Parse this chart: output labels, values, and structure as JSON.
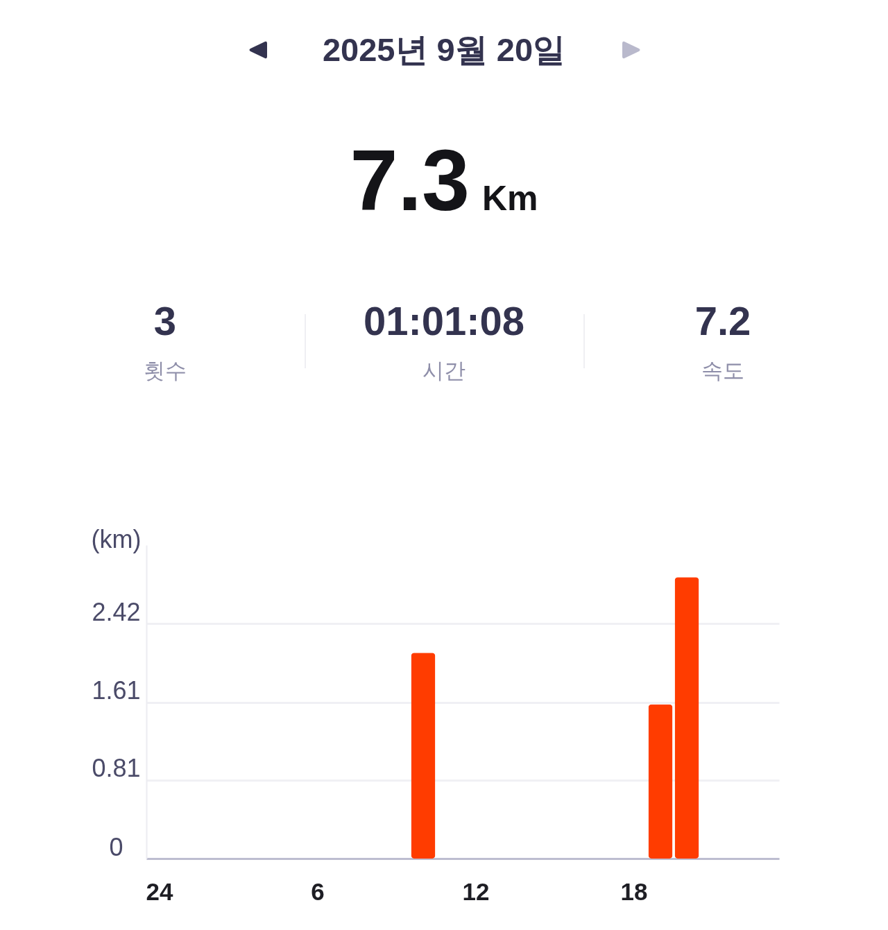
{
  "chart_data": {
    "type": "bar",
    "title": "2025년 9월 20일",
    "ylabel": "(km)",
    "categories": [
      "24",
      null,
      null,
      null,
      null,
      null,
      "6",
      null,
      null,
      null,
      null,
      null,
      "12",
      null,
      null,
      null,
      null,
      null,
      "18",
      null,
      null,
      null,
      null,
      null
    ],
    "values": [
      null,
      null,
      null,
      null,
      null,
      null,
      null,
      null,
      null,
      null,
      2.12,
      null,
      null,
      null,
      null,
      null,
      null,
      null,
      null,
      1.59,
      2.9,
      null,
      null,
      null
    ],
    "color": "#ff3c00",
    "ylim": [
      0,
      3.23
    ],
    "yticks": [
      0,
      0.81,
      1.61,
      2.42
    ],
    "grid": "y",
    "annotations": [
      "7.3",
      "Km",
      "3",
      "횟수",
      "01:01:08",
      "시간",
      "7.2",
      "속도"
    ]
  }
}
